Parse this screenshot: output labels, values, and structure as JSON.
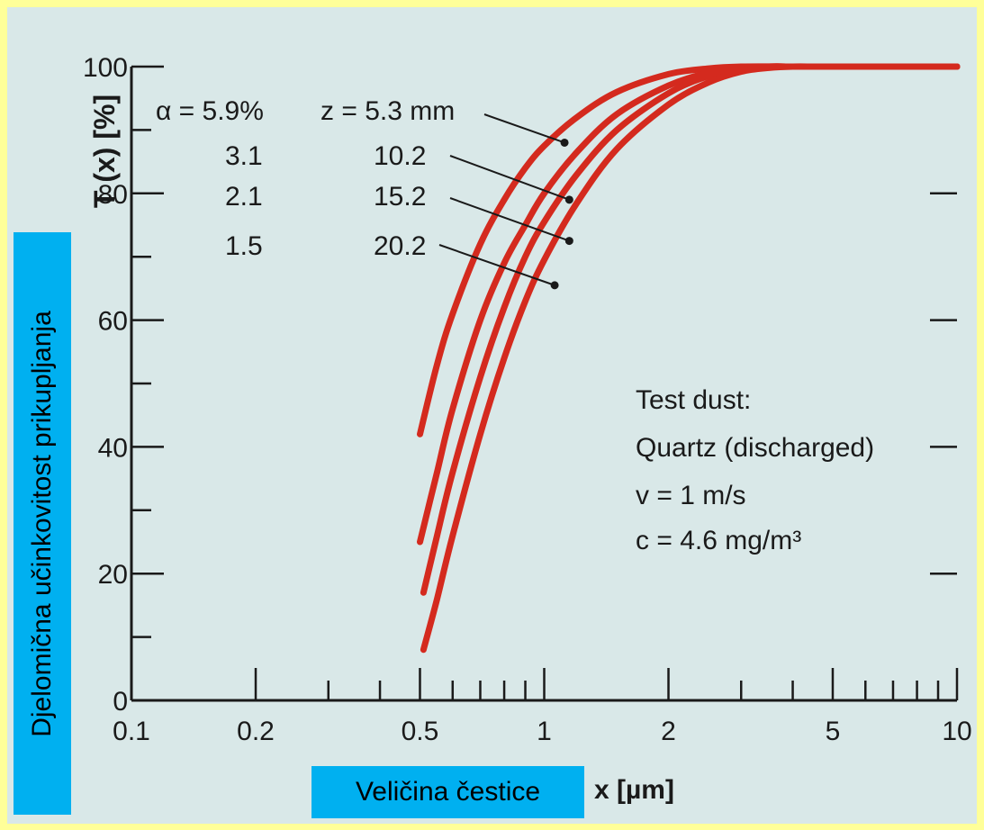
{
  "chart_data": {
    "type": "line",
    "x_scale": "log",
    "xlim": [
      0.1,
      10
    ],
    "ylim": [
      0,
      100
    ],
    "x_ticks": [
      "0.1",
      "0.2",
      "0.5",
      "1",
      "2",
      "5",
      "10"
    ],
    "y_ticks": [
      "0",
      "20",
      "40",
      "60",
      "80",
      "100"
    ],
    "ylabel_original": "T (x) [%]",
    "xlabel_original": "x [µm]",
    "ylabel_overlay": "Djelomična učinkovitost prikupljanja",
    "xlabel_overlay": "Veličina čestice",
    "alpha_header": "α = 5.9%",
    "alpha_values": [
      "3.1",
      "2.1",
      "1.5"
    ],
    "z_header": "z = 5.3 mm",
    "z_values": [
      "10.2",
      "15.2",
      "20.2"
    ],
    "info_lines": [
      "Test dust:",
      "Quartz (discharged)",
      "v = 1 m/s",
      "c = 4.6 mg/m³"
    ],
    "colors": {
      "curve": "#d42a1e",
      "plot_bg": "#d9e8e8",
      "slide_bg": "#ffff99",
      "overlay": "#00b0f0"
    },
    "series": [
      {
        "x": [
          0.5,
          0.55,
          0.6,
          0.7,
          0.8,
          0.9,
          1.0,
          1.2,
          1.5,
          2.0,
          2.5,
          3.0,
          4.0,
          5.0,
          7.0,
          10.0
        ],
        "y": [
          42,
          53,
          61,
          72,
          79,
          84,
          87.5,
          92,
          96,
          98.8,
          99.7,
          100,
          100,
          100,
          100,
          100
        ],
        "marker": {
          "x": 1.12,
          "y": 88
        }
      },
      {
        "x": [
          0.5,
          0.55,
          0.6,
          0.7,
          0.8,
          0.9,
          1.0,
          1.2,
          1.5,
          2.0,
          2.5,
          3.0,
          3.5,
          4.0,
          5.0,
          7.0,
          10.0
        ],
        "y": [
          25,
          36,
          46,
          60,
          69,
          75,
          80,
          86.5,
          92.5,
          97,
          99,
          99.8,
          100,
          100,
          100,
          100,
          100
        ],
        "marker": {
          "x": 1.15,
          "y": 79
        }
      },
      {
        "x": [
          0.51,
          0.55,
          0.6,
          0.7,
          0.8,
          0.9,
          1.0,
          1.2,
          1.5,
          2.0,
          2.5,
          3.0,
          3.5,
          4.0,
          5.0,
          7.0,
          10.0
        ],
        "y": [
          17,
          26,
          36,
          51,
          62,
          70,
          75.5,
          83,
          90,
          95.8,
          98.5,
          99.5,
          100,
          100,
          100,
          100,
          100
        ],
        "marker": {
          "x": 1.15,
          "y": 72.5
        }
      },
      {
        "x": [
          0.51,
          0.55,
          0.6,
          0.7,
          0.8,
          0.9,
          1.0,
          1.2,
          1.5,
          2.0,
          2.5,
          3.0,
          3.5,
          4.0,
          4.5,
          5.0,
          7.0,
          10.0
        ],
        "y": [
          8,
          16,
          26,
          42,
          54,
          63,
          69.5,
          78.5,
          87,
          94,
          97.5,
          99.2,
          99.8,
          100,
          100,
          100,
          100,
          100
        ],
        "marker": {
          "x": 1.06,
          "y": 65.5
        }
      }
    ]
  }
}
